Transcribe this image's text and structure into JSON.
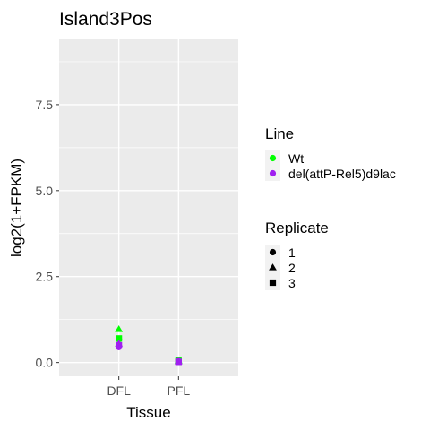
{
  "chart_data": {
    "type": "scatter",
    "title": "Island3Pos",
    "xlabel": "Tissue",
    "ylabel": "log2(1+FPKM)",
    "categories": [
      "DFL",
      "PFL"
    ],
    "ylim": [
      -0.4,
      9.4
    ],
    "yticks": [
      0.0,
      2.5,
      5.0,
      7.5
    ],
    "ytick_labels": [
      "0.0",
      "2.5",
      "5.0",
      "7.5"
    ],
    "grid": true,
    "panel_background": "#ebebeb",
    "color_legend": {
      "title": "Line",
      "entries": [
        {
          "label": "Wt",
          "color": "#00ff00"
        },
        {
          "label": "del(attP-Rel5)d9lac",
          "color": "#a020f0"
        }
      ]
    },
    "shape_legend": {
      "title": "Replicate",
      "entries": [
        {
          "label": "1",
          "shape": "circle"
        },
        {
          "label": "2",
          "shape": "triangle"
        },
        {
          "label": "3",
          "shape": "square"
        }
      ]
    },
    "points": [
      {
        "x": "DFL",
        "y": 0.97,
        "line": "Wt",
        "replicate": "2"
      },
      {
        "x": "DFL",
        "y": 0.7,
        "line": "Wt",
        "replicate": "3"
      },
      {
        "x": "DFL",
        "y": 0.68,
        "line": "Wt",
        "replicate": "1"
      },
      {
        "x": "DFL",
        "y": 0.55,
        "line": "del(attP-Rel5)d9lac",
        "replicate": "2"
      },
      {
        "x": "DFL",
        "y": 0.5,
        "line": "del(attP-Rel5)d9lac",
        "replicate": "3"
      },
      {
        "x": "DFL",
        "y": 0.45,
        "line": "del(attP-Rel5)d9lac",
        "replicate": "1"
      },
      {
        "x": "PFL",
        "y": 0.08,
        "line": "Wt",
        "replicate": "1"
      },
      {
        "x": "PFL",
        "y": 0.06,
        "line": "Wt",
        "replicate": "2"
      },
      {
        "x": "PFL",
        "y": 0.05,
        "line": "Wt",
        "replicate": "3"
      },
      {
        "x": "PFL",
        "y": 0.04,
        "line": "del(attP-Rel5)d9lac",
        "replicate": "1"
      },
      {
        "x": "PFL",
        "y": 0.03,
        "line": "del(attP-Rel5)d9lac",
        "replicate": "2"
      },
      {
        "x": "PFL",
        "y": 0.02,
        "line": "del(attP-Rel5)d9lac",
        "replicate": "3"
      }
    ]
  }
}
